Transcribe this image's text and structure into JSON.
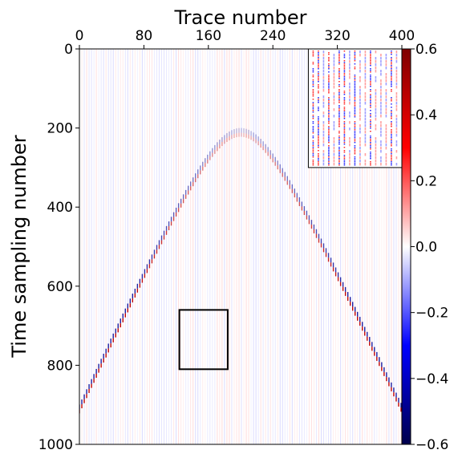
{
  "chart_data": {
    "type": "heatmap",
    "title": "",
    "xlabel": "Trace number",
    "ylabel": "Time sampling number",
    "x_axis_position": "top",
    "xlim": [
      0,
      400
    ],
    "ylim": [
      1000,
      0
    ],
    "x_ticks": [
      "0",
      "80",
      "160",
      "240",
      "320",
      "400"
    ],
    "y_ticks": [
      "0",
      "200",
      "400",
      "600",
      "800",
      "1000"
    ],
    "colorbar": {
      "cmap": "seismic",
      "range": [
        -0.6,
        0.6
      ],
      "ticks": [
        "0.6",
        "0.4",
        "0.2",
        "0.0",
        "−0.2",
        "−0.4",
        "−0.6"
      ],
      "colors": [
        "#00004c",
        "#0000ff",
        "#ffffff",
        "#ff0000",
        "#7f0000"
      ]
    },
    "events": [
      {
        "name": "hyperbolic-reflection",
        "apex_trace": 200,
        "apex_time": 210,
        "velocity_factor": 0.226,
        "amplitude": 0.6
      }
    ],
    "highlight_box": {
      "x_range": [
        124,
        184
      ],
      "y_range": [
        660,
        810
      ]
    },
    "inset": {
      "x_range": [
        284,
        400
      ],
      "y_range": [
        0,
        300
      ]
    },
    "grid": false
  }
}
